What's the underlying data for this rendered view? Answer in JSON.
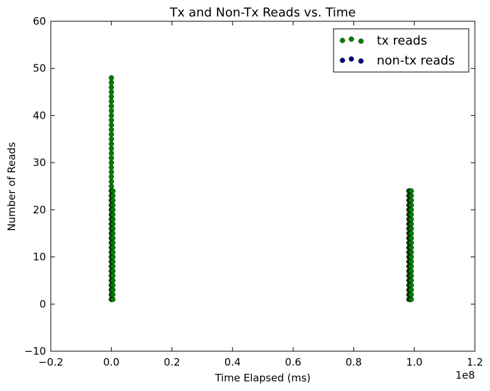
{
  "chart_data": {
    "type": "scatter",
    "title": "Tx and Non-Tx Reads vs. Time",
    "xlabel": "Time Elapsed (ms)",
    "ylabel": "Number of Reads",
    "x_offset_label": "1e8",
    "xlim": [
      -0.2,
      1.2
    ],
    "ylim": [
      -10,
      60
    ],
    "x_ticks": [
      -0.2,
      0.0,
      0.2,
      0.4,
      0.6,
      0.8,
      1.0,
      1.2
    ],
    "x_tick_labels": [
      "−0.2",
      "0.0",
      "0.2",
      "0.4",
      "0.6",
      "0.8",
      "1.0",
      "1.2"
    ],
    "y_ticks": [
      -10,
      0,
      10,
      20,
      30,
      40,
      50,
      60
    ],
    "y_tick_labels": [
      "−10",
      "0",
      "10",
      "20",
      "30",
      "40",
      "50",
      "60"
    ],
    "grid": false,
    "legend_position": "top-right",
    "series": [
      {
        "name": "tx reads",
        "color": "#008000",
        "clusters": [
          {
            "x": [
              0.0,
              0.0
            ],
            "y": [
              1,
              48
            ]
          },
          {
            "x": [
              0.0,
              0.005
            ],
            "y": [
              1,
              24
            ]
          },
          {
            "x": [
              0.982,
              0.99
            ],
            "y": [
              1,
              24
            ]
          }
        ]
      },
      {
        "name": "non-tx reads",
        "color": "#00008b",
        "clusters": []
      }
    ]
  }
}
